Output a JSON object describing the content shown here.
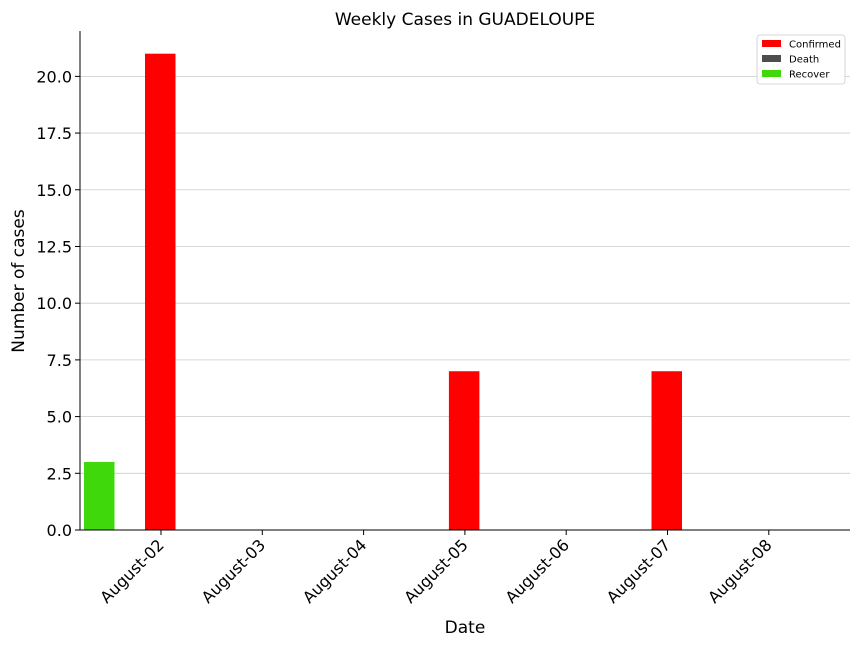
{
  "chart_data": {
    "type": "bar",
    "title": "Weekly Cases in GUADELOUPE",
    "xlabel": "Date",
    "ylabel": "Number of cases",
    "categories": [
      "August-02",
      "August-03",
      "August-04",
      "August-05",
      "August-06",
      "August-07",
      "August-08"
    ],
    "series": [
      {
        "name": "Confirmed",
        "color": "#ff0000",
        "values": [
          21,
          0,
          0,
          7,
          0,
          7,
          0
        ]
      },
      {
        "name": "Death",
        "color": "#4d4d4d",
        "values": [
          0,
          0,
          0,
          0,
          0,
          0,
          0
        ]
      },
      {
        "name": "Recover",
        "color": "#3fd90b",
        "values": [
          3,
          0,
          0,
          0,
          0,
          0,
          0
        ]
      }
    ],
    "ylim": [
      0,
      22
    ],
    "yticks": [
      "0.0",
      "2.5",
      "5.0",
      "7.5",
      "10.0",
      "12.5",
      "15.0",
      "17.5",
      "20.0"
    ],
    "grid": "horizontal",
    "legend_position": "top-right"
  }
}
